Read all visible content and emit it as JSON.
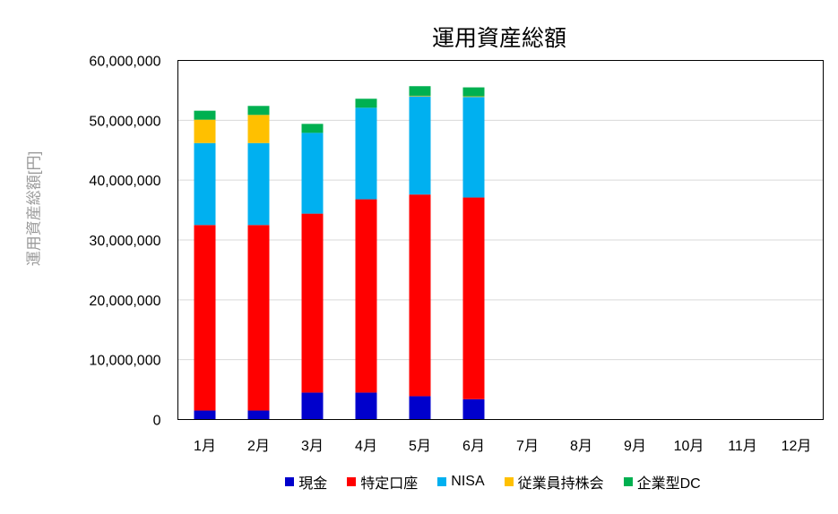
{
  "chart_data": {
    "type": "bar",
    "stacked": true,
    "title": "運用資産総額",
    "xlabel": "",
    "ylabel": "運用資産総額[円]",
    "ylim": [
      0,
      60000000
    ],
    "yticks": [
      {
        "value": 0,
        "label": "0"
      },
      {
        "value": 10000000,
        "label": "10,000,000"
      },
      {
        "value": 20000000,
        "label": "20,000,000"
      },
      {
        "value": 30000000,
        "label": "30,000,000"
      },
      {
        "value": 40000000,
        "label": "40,000,000"
      },
      {
        "value": 50000000,
        "label": "50,000,000"
      },
      {
        "value": 60000000,
        "label": "60,000,000"
      }
    ],
    "grid": true,
    "legend_position": "bottom",
    "categories": [
      "1月",
      "2月",
      "3月",
      "4月",
      "5月",
      "6月",
      "7月",
      "8月",
      "9月",
      "10月",
      "11月",
      "12月"
    ],
    "series": [
      {
        "name": "現金",
        "color": "#0000CC",
        "values": [
          1500000,
          1500000,
          4500000,
          4500000,
          3900000,
          3400000,
          null,
          null,
          null,
          null,
          null,
          null
        ]
      },
      {
        "name": "特定口座",
        "color": "#FF0000",
        "values": [
          31000000,
          31000000,
          29900000,
          32300000,
          33700000,
          33700000,
          null,
          null,
          null,
          null,
          null,
          null
        ]
      },
      {
        "name": "NISA",
        "color": "#00B0F0",
        "values": [
          13700000,
          13700000,
          13500000,
          15300000,
          16400000,
          16800000,
          null,
          null,
          null,
          null,
          null,
          null
        ]
      },
      {
        "name": "従業員持株会",
        "color": "#FFC000",
        "values": [
          3900000,
          4700000,
          0,
          0,
          100000,
          100000,
          null,
          null,
          null,
          null,
          null,
          null
        ]
      },
      {
        "name": "企業型DC",
        "color": "#00B050",
        "values": [
          1500000,
          1500000,
          1500000,
          1500000,
          1600000,
          1500000,
          null,
          null,
          null,
          null,
          null,
          null
        ]
      }
    ]
  }
}
